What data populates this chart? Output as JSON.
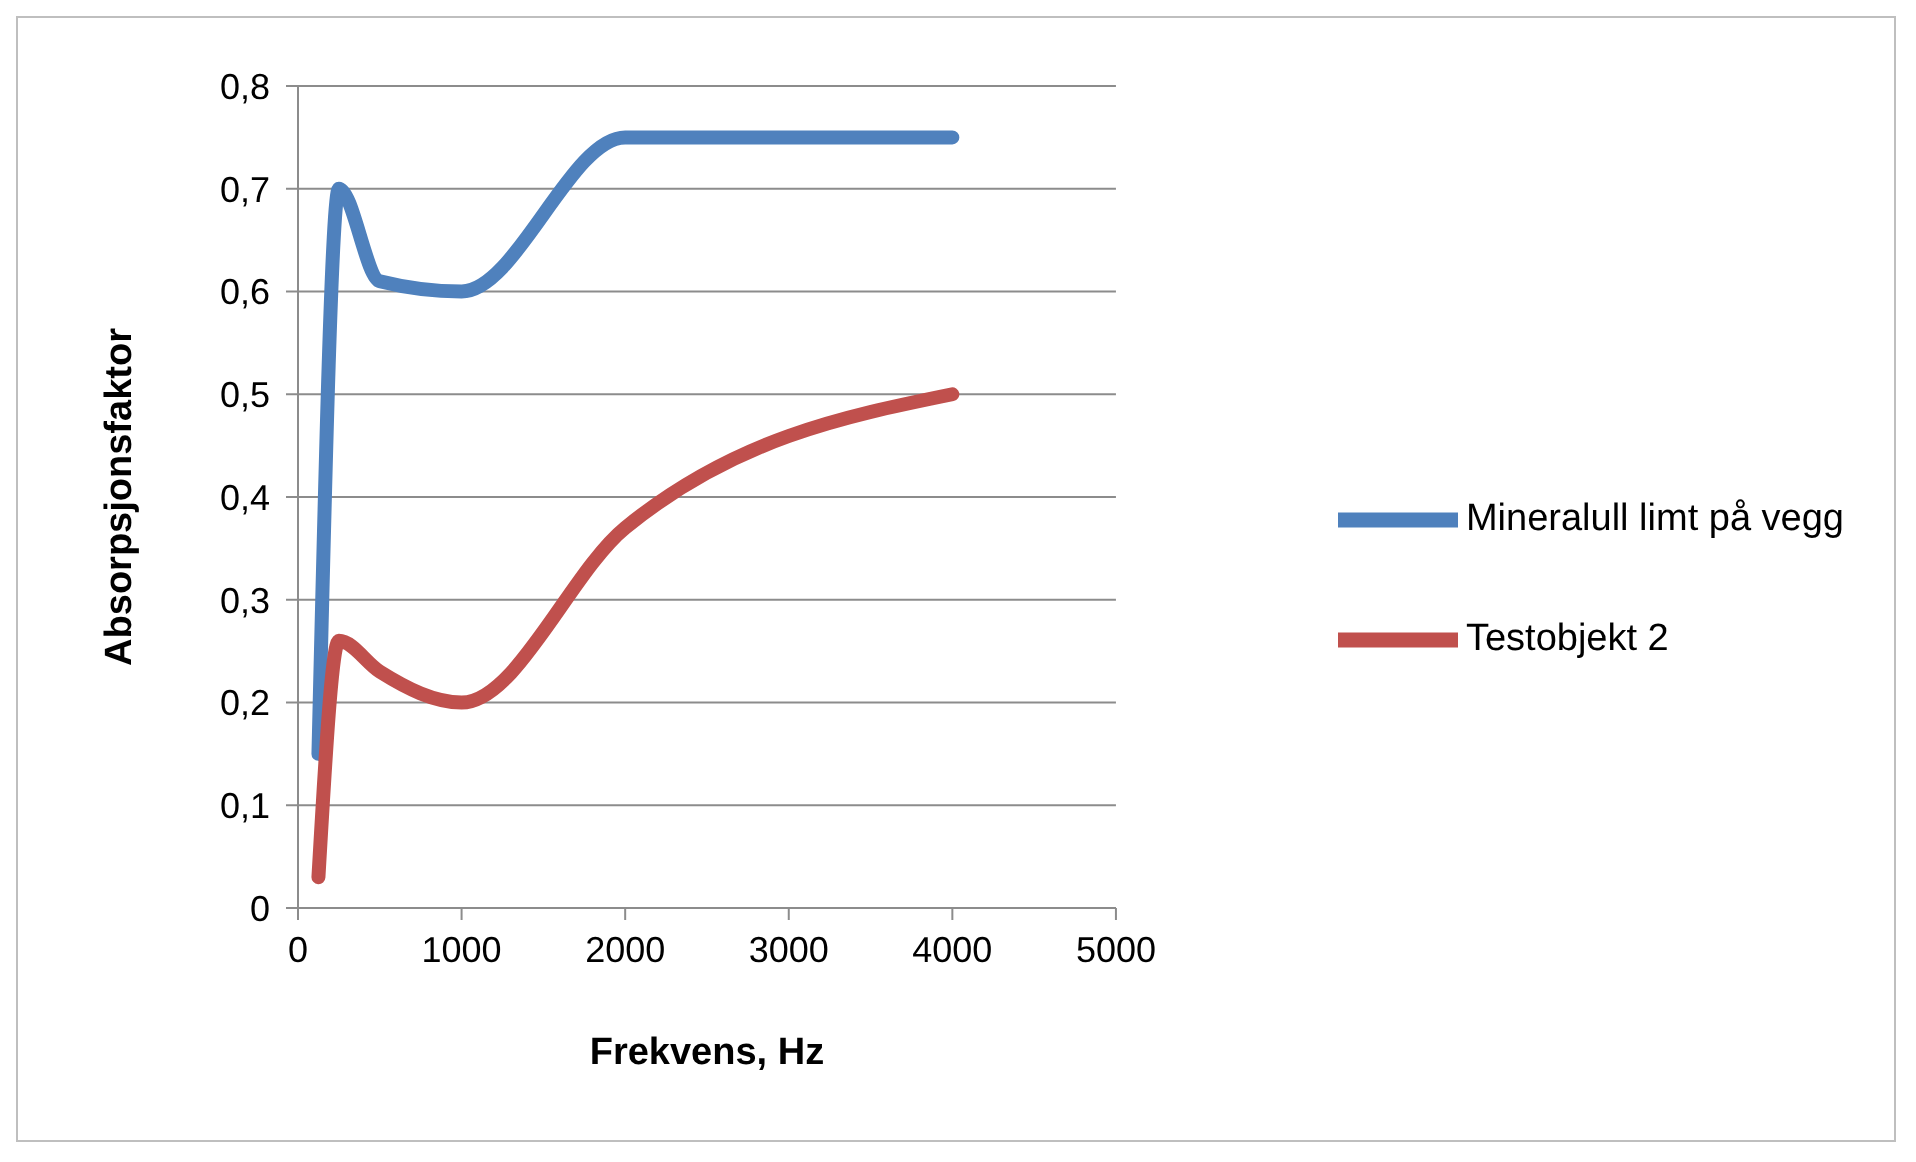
{
  "chart_data": {
    "type": "line",
    "xlabel": "Frekvens, Hz",
    "ylabel": "Absorpsjonsfaktor",
    "x": [
      125,
      250,
      500,
      1000,
      2000,
      4000
    ],
    "series": [
      {
        "name": "Mineralull limt på vegg",
        "color": "#4f81bd",
        "values": [
          0.15,
          0.7,
          0.61,
          0.6,
          0.75,
          0.75
        ]
      },
      {
        "name": "Testobjekt 2",
        "color": "#c0504d",
        "values": [
          0.03,
          0.26,
          0.23,
          0.2,
          0.37,
          0.5
        ]
      }
    ],
    "xlim": [
      0,
      5000
    ],
    "xticks": [
      0,
      1000,
      2000,
      3000,
      4000,
      5000
    ],
    "ylim": [
      0,
      0.8
    ],
    "yticks": [
      0,
      {
        "value": 0.1,
        "label": "0,1"
      },
      {
        "value": 0.2,
        "label": "0,2"
      },
      {
        "value": 0.3,
        "label": "0,3"
      },
      {
        "value": 0.4,
        "label": "0,4"
      },
      {
        "value": 0.5,
        "label": "0,5"
      },
      {
        "value": 0.6,
        "label": "0,6"
      },
      {
        "value": 0.7,
        "label": "0,7"
      },
      {
        "value": 0.8,
        "label": "0,8"
      }
    ],
    "grid": "y",
    "legend": "right",
    "marker": "none",
    "line_style": "solid"
  }
}
